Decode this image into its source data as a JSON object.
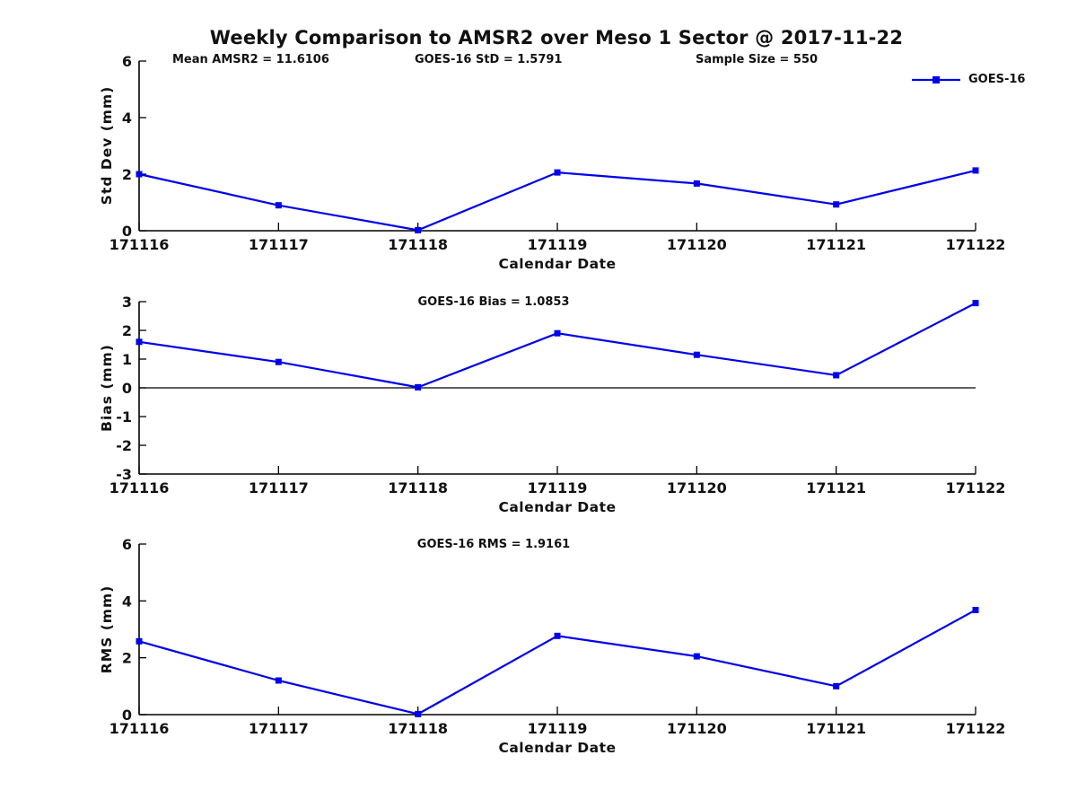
{
  "title": "Weekly Comparison to AMSR2 over Meso 1 Sector @ 2017-11-22",
  "legend": {
    "label": "GOES-16",
    "color": "#0000ee",
    "position": "top-right"
  },
  "chart_data": [
    {
      "type": "line",
      "categories": [
        "171116",
        "171117",
        "171118",
        "171119",
        "171120",
        "171121",
        "171122"
      ],
      "series": [
        {
          "name": "GOES-16",
          "values": [
            2.0,
            0.9,
            0.02,
            2.06,
            1.67,
            0.93,
            2.13
          ]
        }
      ],
      "title": "",
      "annotations": [
        "Mean AMSR2 = 11.6106",
        "GOES-16 StD = 1.5791",
        "Sample Size = 550"
      ],
      "xlabel": "Calendar Date",
      "ylabel": "Std Dev (mm)",
      "ylim": [
        0,
        6
      ],
      "yticks": [
        0,
        2,
        4,
        6
      ],
      "zero_line": false,
      "grid": false,
      "marker": "square",
      "legend": {
        "label": "GOES-16",
        "position": "top-right"
      }
    },
    {
      "type": "line",
      "categories": [
        "171116",
        "171117",
        "171118",
        "171119",
        "171120",
        "171121",
        "171122"
      ],
      "series": [
        {
          "name": "GOES-16",
          "values": [
            1.6,
            0.9,
            0.02,
            1.9,
            1.15,
            0.44,
            2.95
          ]
        }
      ],
      "title": "GOES-16 Bias  = 1.0853",
      "annotations": [],
      "xlabel": "Calendar Date",
      "ylabel": "Bias (mm)",
      "ylim": [
        -3,
        3
      ],
      "yticks": [
        -3,
        -2,
        -1,
        0,
        1,
        2,
        3
      ],
      "zero_line": true,
      "grid": false,
      "marker": "square"
    },
    {
      "type": "line",
      "categories": [
        "171116",
        "171117",
        "171118",
        "171119",
        "171120",
        "171121",
        "171122"
      ],
      "series": [
        {
          "name": "GOES-16",
          "values": [
            2.58,
            1.2,
            0.02,
            2.77,
            2.05,
            1.0,
            3.68
          ]
        }
      ],
      "title": "GOES-16 RMS = 1.9161",
      "annotations": [],
      "xlabel": "Calendar Date",
      "ylabel": "RMS (mm)",
      "ylim": [
        0,
        6
      ],
      "yticks": [
        0,
        2,
        4,
        6
      ],
      "zero_line": false,
      "grid": false,
      "marker": "square"
    }
  ]
}
